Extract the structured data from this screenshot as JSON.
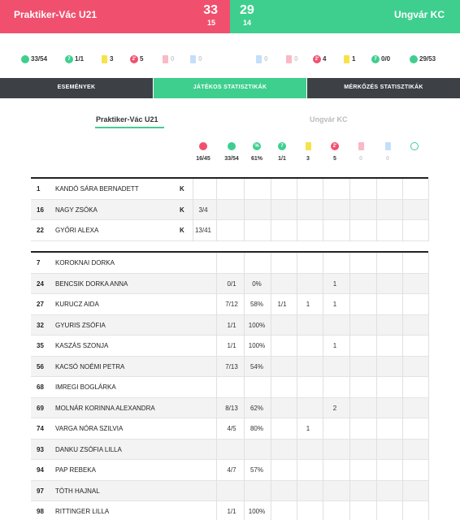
{
  "header": {
    "home_team": "Praktiker-Vác U21",
    "home_score": "33",
    "home_halftime": "15",
    "away_score": "29",
    "away_halftime": "14",
    "away_team": "Ungvár KC"
  },
  "summary": {
    "home": [
      "33/54",
      "1/1",
      "3",
      "5",
      "0",
      "0"
    ],
    "away": [
      "0",
      "0",
      "4",
      "1",
      "0/0",
      "29/53"
    ]
  },
  "tabs": [
    "ESEMÉNYEK",
    "JÁTÉKOS STATISZTIKÁK",
    "MÉRKŐZÉS STATISZTIKÁK"
  ],
  "team_tabs": [
    "Praktiker-Vác U21",
    "Ungvár KC"
  ],
  "totals": [
    "16/45",
    "33/54",
    "61%",
    "1/1",
    "3",
    "5",
    "0",
    "0",
    null
  ],
  "goalkeepers": [
    {
      "number": "1",
      "name": "KANDÓ SÁRA BERNADETT",
      "role": "K",
      "cells": [
        null,
        null,
        null,
        null,
        null,
        null,
        null,
        null,
        null
      ]
    },
    {
      "number": "16",
      "name": "NAGY ZSÓKA",
      "role": "K",
      "cells": [
        "3/4",
        null,
        null,
        null,
        null,
        null,
        null,
        null,
        null
      ]
    },
    {
      "number": "22",
      "name": "GYŐRI ALEXA",
      "role": "K",
      "cells": [
        "13/41",
        null,
        null,
        null,
        null,
        null,
        null,
        null,
        null
      ]
    }
  ],
  "players": [
    {
      "number": "7",
      "name": "KOROKNAI DORKA",
      "cells": [
        null,
        null,
        null,
        null,
        null,
        null,
        null,
        null
      ]
    },
    {
      "number": "24",
      "name": "BENCSIK DORKA ANNA",
      "cells": [
        "0/1",
        "0%",
        null,
        null,
        "1",
        null,
        null,
        null
      ]
    },
    {
      "number": "27",
      "name": "KURUCZ AIDA",
      "cells": [
        "7/12",
        "58%",
        "1/1",
        "1",
        "1",
        null,
        null,
        null
      ]
    },
    {
      "number": "32",
      "name": "GYURIS ZSÓFIA",
      "cells": [
        "1/1",
        "100%",
        null,
        null,
        null,
        null,
        null,
        null
      ]
    },
    {
      "number": "35",
      "name": "KASZÁS SZONJA",
      "cells": [
        "1/1",
        "100%",
        null,
        null,
        "1",
        null,
        null,
        null
      ]
    },
    {
      "number": "56",
      "name": "KACSÓ NOÉMI PETRA",
      "cells": [
        "7/13",
        "54%",
        null,
        null,
        null,
        null,
        null,
        null
      ]
    },
    {
      "number": "68",
      "name": "IMREGI BOGLÁRKA",
      "cells": [
        null,
        null,
        null,
        null,
        null,
        null,
        null,
        null
      ]
    },
    {
      "number": "69",
      "name": "MOLNÁR KORINNA ALEXANDRA",
      "cells": [
        "8/13",
        "62%",
        null,
        null,
        "2",
        null,
        null,
        null
      ]
    },
    {
      "number": "74",
      "name": "VARGA NÓRA SZILVIA",
      "cells": [
        "4/5",
        "80%",
        null,
        "1",
        null,
        null,
        null,
        null
      ]
    },
    {
      "number": "93",
      "name": "DANKU ZSÓFIA LILLA",
      "cells": [
        null,
        null,
        null,
        null,
        null,
        null,
        null,
        null
      ]
    },
    {
      "number": "94",
      "name": "PAP REBEKA",
      "cells": [
        "4/7",
        "57%",
        null,
        null,
        null,
        null,
        null,
        null
      ]
    },
    {
      "number": "97",
      "name": "TÓTH HAJNAL",
      "cells": [
        null,
        null,
        null,
        null,
        null,
        null,
        null,
        null
      ]
    },
    {
      "number": "98",
      "name": "RITTINGER LILLA",
      "cells": [
        "1/1",
        "100%",
        null,
        null,
        null,
        null,
        null,
        null
      ]
    }
  ]
}
